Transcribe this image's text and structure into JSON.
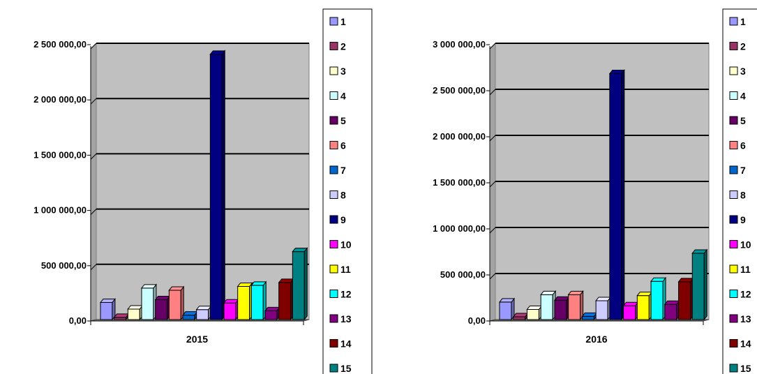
{
  "colors": {
    "1": "#9999ff",
    "2": "#993366",
    "3": "#ffffcc",
    "4": "#ccffff",
    "5": "#660066",
    "6": "#ff8080",
    "7": "#0066cc",
    "8": "#ccccff",
    "9": "#000080",
    "10": "#ff00ff",
    "11": "#ffff00",
    "12": "#00ffff",
    "13": "#800080",
    "14": "#800000",
    "15": "#008080",
    "plot_wall": "#c0c0c0",
    "floor": "#808080",
    "gridline": "#000000"
  },
  "chart_data": [
    {
      "type": "bar",
      "variant": "3d-clustered-column",
      "categories": [
        "2015"
      ],
      "series": [
        {
          "name": "1",
          "values": [
            155000
          ]
        },
        {
          "name": "2",
          "values": [
            20000
          ]
        },
        {
          "name": "3",
          "values": [
            95000
          ]
        },
        {
          "name": "4",
          "values": [
            285000
          ]
        },
        {
          "name": "5",
          "values": [
            180000
          ]
        },
        {
          "name": "6",
          "values": [
            265000
          ]
        },
        {
          "name": "7",
          "values": [
            40000
          ]
        },
        {
          "name": "8",
          "values": [
            90000
          ]
        },
        {
          "name": "9",
          "values": [
            2400000
          ]
        },
        {
          "name": "10",
          "values": [
            150000
          ]
        },
        {
          "name": "11",
          "values": [
            300000
          ]
        },
        {
          "name": "12",
          "values": [
            310000
          ]
        },
        {
          "name": "13",
          "values": [
            80000
          ]
        },
        {
          "name": "14",
          "values": [
            335000
          ]
        },
        {
          "name": "15",
          "values": [
            615000
          ]
        }
      ],
      "ylim": [
        0,
        2500000
      ],
      "y_ticks": [
        "0,00",
        "500 000,00",
        "1 000 000,00",
        "1 500 000,00",
        "2 000 000,00",
        "2 500 000,00"
      ],
      "grid": true,
      "legend_position": "right"
    },
    {
      "type": "bar",
      "variant": "3d-clustered-column",
      "categories": [
        "2016"
      ],
      "series": [
        {
          "name": "1",
          "values": [
            190000
          ]
        },
        {
          "name": "2",
          "values": [
            30000
          ]
        },
        {
          "name": "3",
          "values": [
            110000
          ]
        },
        {
          "name": "4",
          "values": [
            270000
          ]
        },
        {
          "name": "5",
          "values": [
            210000
          ]
        },
        {
          "name": "6",
          "values": [
            270000
          ]
        },
        {
          "name": "7",
          "values": [
            35000
          ]
        },
        {
          "name": "8",
          "values": [
            205000
          ]
        },
        {
          "name": "9",
          "values": [
            2670000
          ]
        },
        {
          "name": "10",
          "values": [
            150000
          ]
        },
        {
          "name": "11",
          "values": [
            260000
          ]
        },
        {
          "name": "12",
          "values": [
            415000
          ]
        },
        {
          "name": "13",
          "values": [
            165000
          ]
        },
        {
          "name": "14",
          "values": [
            410000
          ]
        },
        {
          "name": "15",
          "values": [
            720000
          ]
        }
      ],
      "ylim": [
        0,
        3000000
      ],
      "y_ticks": [
        "0,00",
        "500 000,00",
        "1 000 000,00",
        "1 500 000,00",
        "2 000 000,00",
        "2 500 000,00",
        "3 000 000,00"
      ],
      "grid": true,
      "legend_position": "right"
    }
  ]
}
